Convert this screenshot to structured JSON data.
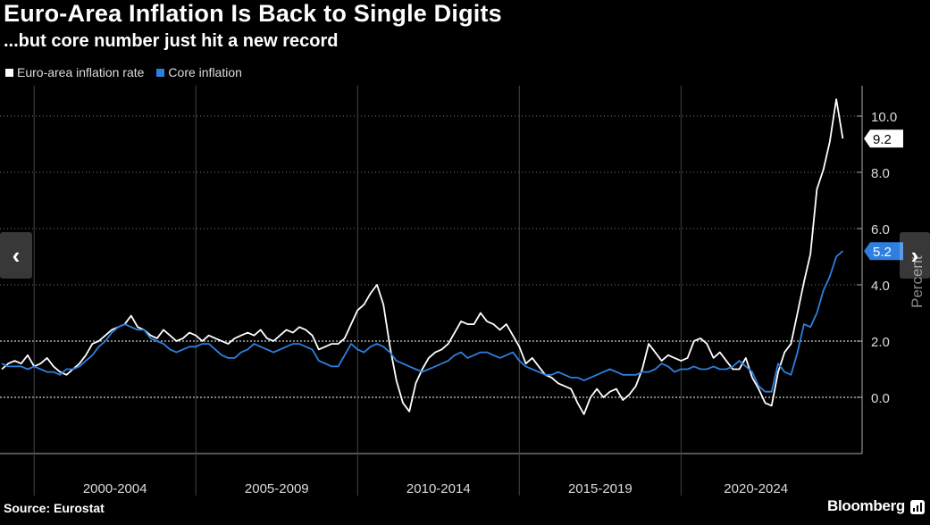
{
  "chart": {
    "title": "Euro-Area Inflation Is Back to Single Digits",
    "subtitle": "...but core number just hit a new record",
    "source": "Source: Eurostat",
    "brand": "Bloomberg",
    "brand_icon": "bloomberg-bars-icon"
  },
  "navigation": {
    "prev_icon": "chevron-left-icon",
    "prev_glyph": "‹",
    "next_icon": "chevron-right-icon",
    "next_glyph": "›"
  },
  "colors": {
    "background": "#000000",
    "headline": "#ffffff",
    "core": "#2f7fe0",
    "grid": "#555555",
    "axis": "#aaaaaa"
  },
  "chart_data": {
    "type": "line",
    "title": "Euro-Area Inflation Is Back to Single Digits",
    "subtitle": "...but core number just hit a new record",
    "xlabel": "",
    "ylabel": "Percent",
    "ylim": [
      -2,
      11
    ],
    "xlim": [
      1997,
      2023.1
    ],
    "y_ticks": [
      0,
      2,
      4,
      6,
      8,
      10
    ],
    "y_tick_labels": [
      "0.0",
      "2.0",
      "4.0",
      "6.0",
      "8.0",
      "10.0"
    ],
    "x_groups": [
      {
        "label": "2000-2004",
        "start": 1998,
        "end": 2003
      },
      {
        "label": "2005-2009",
        "start": 2003,
        "end": 2008
      },
      {
        "label": "2010-2014",
        "start": 2008,
        "end": 2013
      },
      {
        "label": "2015-2019",
        "start": 2013,
        "end": 2018
      },
      {
        "label": "2020-2024",
        "start": 2018,
        "end": 2023.1
      }
    ],
    "grid": "horizontal",
    "legend_position": "top-left",
    "series": [
      {
        "name": "Euro-area inflation rate",
        "color": "#ffffff",
        "last_label": "9.2",
        "points": [
          [
            1997.0,
            1.0
          ],
          [
            1997.2,
            1.2
          ],
          [
            1997.4,
            1.3
          ],
          [
            1997.6,
            1.2
          ],
          [
            1997.8,
            1.5
          ],
          [
            1998.0,
            1.1
          ],
          [
            1998.2,
            1.2
          ],
          [
            1998.4,
            1.4
          ],
          [
            1998.6,
            1.1
          ],
          [
            1998.8,
            0.9
          ],
          [
            1999.0,
            0.8
          ],
          [
            1999.2,
            1.0
          ],
          [
            1999.4,
            1.2
          ],
          [
            1999.6,
            1.5
          ],
          [
            1999.8,
            1.9
          ],
          [
            2000.0,
            2.0
          ],
          [
            2000.2,
            2.2
          ],
          [
            2000.4,
            2.4
          ],
          [
            2000.6,
            2.5
          ],
          [
            2000.8,
            2.6
          ],
          [
            2001.0,
            2.9
          ],
          [
            2001.2,
            2.5
          ],
          [
            2001.4,
            2.4
          ],
          [
            2001.6,
            2.2
          ],
          [
            2001.8,
            2.1
          ],
          [
            2002.0,
            2.4
          ],
          [
            2002.2,
            2.2
          ],
          [
            2002.4,
            2.0
          ],
          [
            2002.6,
            2.1
          ],
          [
            2002.8,
            2.3
          ],
          [
            2003.0,
            2.2
          ],
          [
            2003.2,
            2.0
          ],
          [
            2003.4,
            2.2
          ],
          [
            2003.6,
            2.1
          ],
          [
            2003.8,
            2.0
          ],
          [
            2004.0,
            1.9
          ],
          [
            2004.2,
            2.1
          ],
          [
            2004.4,
            2.2
          ],
          [
            2004.6,
            2.3
          ],
          [
            2004.8,
            2.2
          ],
          [
            2005.0,
            2.4
          ],
          [
            2005.2,
            2.1
          ],
          [
            2005.4,
            2.0
          ],
          [
            2005.6,
            2.2
          ],
          [
            2005.8,
            2.4
          ],
          [
            2006.0,
            2.3
          ],
          [
            2006.2,
            2.5
          ],
          [
            2006.4,
            2.4
          ],
          [
            2006.6,
            2.2
          ],
          [
            2006.8,
            1.7
          ],
          [
            2007.0,
            1.8
          ],
          [
            2007.2,
            1.9
          ],
          [
            2007.4,
            1.9
          ],
          [
            2007.6,
            2.1
          ],
          [
            2007.8,
            2.6
          ],
          [
            2008.0,
            3.1
          ],
          [
            2008.2,
            3.3
          ],
          [
            2008.4,
            3.7
          ],
          [
            2008.6,
            4.0
          ],
          [
            2008.8,
            3.3
          ],
          [
            2009.0,
            1.8
          ],
          [
            2009.2,
            0.6
          ],
          [
            2009.4,
            -0.2
          ],
          [
            2009.6,
            -0.5
          ],
          [
            2009.8,
            0.5
          ],
          [
            2010.0,
            1.0
          ],
          [
            2010.2,
            1.4
          ],
          [
            2010.4,
            1.6
          ],
          [
            2010.6,
            1.7
          ],
          [
            2010.8,
            1.9
          ],
          [
            2011.0,
            2.3
          ],
          [
            2011.2,
            2.7
          ],
          [
            2011.4,
            2.6
          ],
          [
            2011.6,
            2.6
          ],
          [
            2011.8,
            3.0
          ],
          [
            2012.0,
            2.7
          ],
          [
            2012.2,
            2.6
          ],
          [
            2012.4,
            2.4
          ],
          [
            2012.6,
            2.6
          ],
          [
            2012.8,
            2.2
          ],
          [
            2013.0,
            1.8
          ],
          [
            2013.2,
            1.2
          ],
          [
            2013.4,
            1.4
          ],
          [
            2013.6,
            1.1
          ],
          [
            2013.8,
            0.8
          ],
          [
            2014.0,
            0.7
          ],
          [
            2014.2,
            0.5
          ],
          [
            2014.4,
            0.4
          ],
          [
            2014.6,
            0.3
          ],
          [
            2014.8,
            -0.2
          ],
          [
            2015.0,
            -0.6
          ],
          [
            2015.2,
            0.0
          ],
          [
            2015.4,
            0.3
          ],
          [
            2015.6,
            0.0
          ],
          [
            2015.8,
            0.2
          ],
          [
            2016.0,
            0.3
          ],
          [
            2016.2,
            -0.1
          ],
          [
            2016.4,
            0.1
          ],
          [
            2016.6,
            0.4
          ],
          [
            2016.8,
            1.0
          ],
          [
            2017.0,
            1.9
          ],
          [
            2017.2,
            1.6
          ],
          [
            2017.4,
            1.3
          ],
          [
            2017.6,
            1.5
          ],
          [
            2017.8,
            1.4
          ],
          [
            2018.0,
            1.3
          ],
          [
            2018.2,
            1.4
          ],
          [
            2018.4,
            2.0
          ],
          [
            2018.6,
            2.1
          ],
          [
            2018.8,
            1.9
          ],
          [
            2019.0,
            1.4
          ],
          [
            2019.2,
            1.6
          ],
          [
            2019.4,
            1.3
          ],
          [
            2019.6,
            1.0
          ],
          [
            2019.8,
            1.0
          ],
          [
            2020.0,
            1.4
          ],
          [
            2020.2,
            0.7
          ],
          [
            2020.4,
            0.3
          ],
          [
            2020.6,
            -0.2
          ],
          [
            2020.8,
            -0.3
          ],
          [
            2021.0,
            0.9
          ],
          [
            2021.2,
            1.6
          ],
          [
            2021.4,
            1.9
          ],
          [
            2021.6,
            3.0
          ],
          [
            2021.8,
            4.1
          ],
          [
            2022.0,
            5.1
          ],
          [
            2022.2,
            7.4
          ],
          [
            2022.4,
            8.1
          ],
          [
            2022.6,
            9.1
          ],
          [
            2022.8,
            10.6
          ],
          [
            2023.0,
            9.2
          ]
        ]
      },
      {
        "name": "Core inflation",
        "color": "#2f7fe0",
        "last_label": "5.2",
        "points": [
          [
            1997.0,
            1.2
          ],
          [
            1997.2,
            1.1
          ],
          [
            1997.4,
            1.1
          ],
          [
            1997.6,
            1.1
          ],
          [
            1997.8,
            1.0
          ],
          [
            1998.0,
            1.1
          ],
          [
            1998.2,
            1.0
          ],
          [
            1998.4,
            0.9
          ],
          [
            1998.6,
            0.9
          ],
          [
            1998.8,
            0.8
          ],
          [
            1999.0,
            1.0
          ],
          [
            1999.2,
            1.0
          ],
          [
            1999.4,
            1.1
          ],
          [
            1999.6,
            1.3
          ],
          [
            1999.8,
            1.5
          ],
          [
            2000.0,
            1.8
          ],
          [
            2000.2,
            2.0
          ],
          [
            2000.4,
            2.3
          ],
          [
            2000.6,
            2.5
          ],
          [
            2000.8,
            2.6
          ],
          [
            2001.0,
            2.5
          ],
          [
            2001.2,
            2.4
          ],
          [
            2001.4,
            2.4
          ],
          [
            2001.6,
            2.1
          ],
          [
            2001.8,
            2.0
          ],
          [
            2002.0,
            1.9
          ],
          [
            2002.2,
            1.7
          ],
          [
            2002.4,
            1.6
          ],
          [
            2002.6,
            1.7
          ],
          [
            2002.8,
            1.8
          ],
          [
            2003.0,
            1.8
          ],
          [
            2003.2,
            1.9
          ],
          [
            2003.4,
            1.9
          ],
          [
            2003.6,
            1.7
          ],
          [
            2003.8,
            1.5
          ],
          [
            2004.0,
            1.4
          ],
          [
            2004.2,
            1.4
          ],
          [
            2004.4,
            1.6
          ],
          [
            2004.6,
            1.7
          ],
          [
            2004.8,
            1.9
          ],
          [
            2005.0,
            1.8
          ],
          [
            2005.2,
            1.7
          ],
          [
            2005.4,
            1.6
          ],
          [
            2005.6,
            1.7
          ],
          [
            2005.8,
            1.8
          ],
          [
            2006.0,
            1.9
          ],
          [
            2006.2,
            1.9
          ],
          [
            2006.4,
            1.8
          ],
          [
            2006.6,
            1.7
          ],
          [
            2006.8,
            1.3
          ],
          [
            2007.0,
            1.2
          ],
          [
            2007.2,
            1.1
          ],
          [
            2007.4,
            1.1
          ],
          [
            2007.6,
            1.5
          ],
          [
            2007.8,
            1.9
          ],
          [
            2008.0,
            1.7
          ],
          [
            2008.2,
            1.6
          ],
          [
            2008.4,
            1.8
          ],
          [
            2008.6,
            1.9
          ],
          [
            2008.8,
            1.8
          ],
          [
            2009.0,
            1.6
          ],
          [
            2009.2,
            1.3
          ],
          [
            2009.4,
            1.2
          ],
          [
            2009.6,
            1.1
          ],
          [
            2009.8,
            1.0
          ],
          [
            2010.0,
            0.9
          ],
          [
            2010.2,
            1.0
          ],
          [
            2010.4,
            1.1
          ],
          [
            2010.6,
            1.2
          ],
          [
            2010.8,
            1.3
          ],
          [
            2011.0,
            1.5
          ],
          [
            2011.2,
            1.6
          ],
          [
            2011.4,
            1.4
          ],
          [
            2011.6,
            1.5
          ],
          [
            2011.8,
            1.6
          ],
          [
            2012.0,
            1.6
          ],
          [
            2012.2,
            1.5
          ],
          [
            2012.4,
            1.4
          ],
          [
            2012.6,
            1.5
          ],
          [
            2012.8,
            1.6
          ],
          [
            2013.0,
            1.3
          ],
          [
            2013.2,
            1.1
          ],
          [
            2013.4,
            1.0
          ],
          [
            2013.6,
            0.9
          ],
          [
            2013.8,
            0.8
          ],
          [
            2014.0,
            0.8
          ],
          [
            2014.2,
            0.9
          ],
          [
            2014.4,
            0.8
          ],
          [
            2014.6,
            0.7
          ],
          [
            2014.8,
            0.7
          ],
          [
            2015.0,
            0.6
          ],
          [
            2015.2,
            0.7
          ],
          [
            2015.4,
            0.8
          ],
          [
            2015.6,
            0.9
          ],
          [
            2015.8,
            1.0
          ],
          [
            2016.0,
            0.9
          ],
          [
            2016.2,
            0.8
          ],
          [
            2016.4,
            0.8
          ],
          [
            2016.6,
            0.8
          ],
          [
            2016.8,
            0.9
          ],
          [
            2017.0,
            0.9
          ],
          [
            2017.2,
            1.0
          ],
          [
            2017.4,
            1.2
          ],
          [
            2017.6,
            1.1
          ],
          [
            2017.8,
            0.9
          ],
          [
            2018.0,
            1.0
          ],
          [
            2018.2,
            1.0
          ],
          [
            2018.4,
            1.1
          ],
          [
            2018.6,
            1.0
          ],
          [
            2018.8,
            1.0
          ],
          [
            2019.0,
            1.1
          ],
          [
            2019.2,
            1.0
          ],
          [
            2019.4,
            1.0
          ],
          [
            2019.6,
            1.1
          ],
          [
            2019.8,
            1.3
          ],
          [
            2020.0,
            1.1
          ],
          [
            2020.2,
            0.9
          ],
          [
            2020.4,
            0.4
          ],
          [
            2020.6,
            0.2
          ],
          [
            2020.8,
            0.2
          ],
          [
            2021.0,
            1.2
          ],
          [
            2021.2,
            0.9
          ],
          [
            2021.4,
            0.8
          ],
          [
            2021.6,
            1.6
          ],
          [
            2021.8,
            2.6
          ],
          [
            2022.0,
            2.5
          ],
          [
            2022.2,
            3.0
          ],
          [
            2022.4,
            3.8
          ],
          [
            2022.6,
            4.3
          ],
          [
            2022.8,
            5.0
          ],
          [
            2023.0,
            5.2
          ]
        ]
      }
    ]
  }
}
